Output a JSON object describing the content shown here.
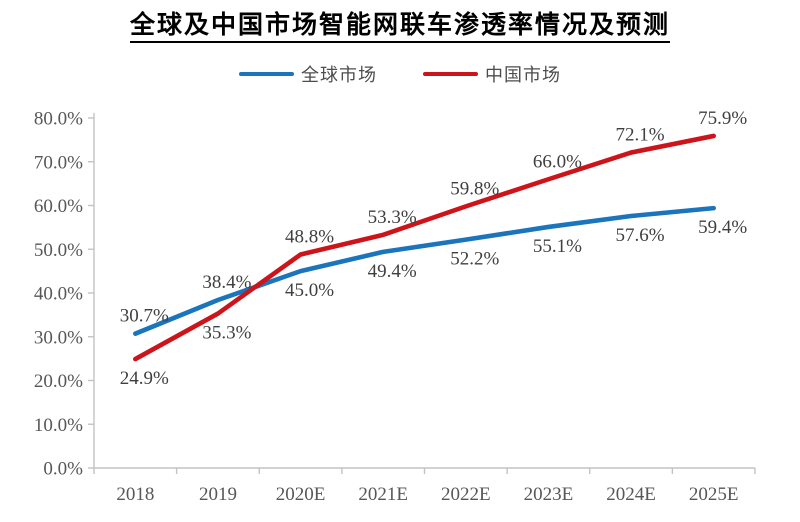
{
  "page": {
    "title": "全球及中国市场智能网联车渗透率情况及预测"
  },
  "legend": {
    "items": [
      {
        "label": "全球市场",
        "color": "#1b75bc"
      },
      {
        "label": "中国市场",
        "color": "#cd141a"
      }
    ]
  },
  "chart_data": {
    "type": "line",
    "title": "全球及中国市场智能网联车渗透率情况及预测",
    "categories": [
      "2018",
      "2019",
      "2020E",
      "2021E",
      "2022E",
      "2023E",
      "2024E",
      "2025E"
    ],
    "series": [
      {
        "name": "全球市场",
        "color": "#1b75bc",
        "values": [
          30.7,
          38.4,
          45.0,
          49.4,
          52.2,
          55.1,
          57.6,
          59.4
        ],
        "labels": [
          "30.7%",
          "38.4%",
          "45.0%",
          "49.4%",
          "52.2%",
          "55.1%",
          "57.6%",
          "59.4%"
        ],
        "label_position": [
          "above",
          "above",
          "below",
          "below",
          "below",
          "below",
          "below",
          "below"
        ]
      },
      {
        "name": "中国市场",
        "color": "#cd141a",
        "values": [
          24.9,
          35.3,
          48.8,
          53.3,
          59.8,
          66.0,
          72.1,
          75.9
        ],
        "labels": [
          "24.9%",
          "35.3%",
          "48.8%",
          "53.3%",
          "59.8%",
          "66.0%",
          "72.1%",
          "75.9%"
        ],
        "label_position": [
          "below",
          "below",
          "above",
          "above",
          "above",
          "above",
          "above",
          "above"
        ]
      }
    ],
    "xlabel": "",
    "ylabel": "",
    "ylim": [
      0,
      80
    ],
    "ytick_step": 10,
    "ytick_labels": [
      "0.0%",
      "10.0%",
      "20.0%",
      "30.0%",
      "40.0%",
      "50.0%",
      "60.0%",
      "70.0%",
      "80.0%"
    ],
    "grid": false,
    "legend_position": "top",
    "axis_color": "#c3c3c3",
    "tick_label_color": "#575757",
    "data_label_color": "#3f3f3f"
  }
}
